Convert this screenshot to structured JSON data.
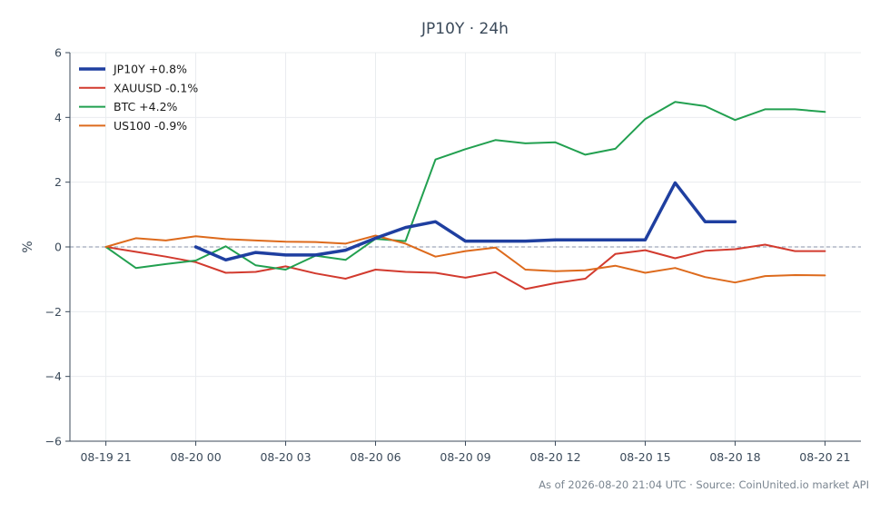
{
  "chart_data": {
    "type": "line",
    "title": "JP10Y · 24h",
    "xlabel": "",
    "ylabel": "%",
    "ylim": [
      -6,
      6
    ],
    "yticks": [
      -6,
      -4,
      -2,
      0,
      2,
      4,
      6
    ],
    "ytick_labels": [
      "−6",
      "−4",
      "−2",
      "0",
      "2",
      "4",
      "6"
    ],
    "xtick_labels": [
      "08-19 21",
      "08-20 00",
      "08-20 03",
      "08-20 06",
      "08-20 09",
      "08-20 12",
      "08-20 15",
      "08-20 18",
      "08-20 21"
    ],
    "xtick_hours": [
      0,
      3,
      6,
      9,
      12,
      15,
      18,
      21,
      24
    ],
    "xlim_hours": [
      -1.2,
      25.2
    ],
    "grid": true,
    "zero_line": true,
    "legend_position": "top-left",
    "series": [
      {
        "name": "JP10Y +0.8%",
        "color": "#1f3fa0",
        "width": 3.5,
        "x": [
          3,
          4,
          5,
          6,
          7,
          8,
          9,
          10,
          11,
          12,
          13,
          14,
          15,
          16,
          17,
          18,
          19,
          20,
          21
        ],
        "y": [
          0.0,
          -0.4,
          -0.17,
          -0.25,
          -0.25,
          -0.1,
          0.27,
          0.6,
          0.78,
          0.18,
          0.18,
          0.18,
          0.22,
          0.22,
          0.22,
          0.22,
          1.98,
          0.78,
          0.78
        ]
      },
      {
        "name": "XAUUSD -0.1%",
        "color": "#d23a2e",
        "width": 2,
        "x": [
          0,
          1,
          2,
          3,
          4,
          5,
          6,
          7,
          8,
          9,
          10,
          11,
          12,
          13,
          14,
          15,
          16,
          17,
          18,
          19,
          20,
          21,
          22,
          23,
          24
        ],
        "y": [
          0.0,
          -0.15,
          -0.3,
          -0.47,
          -0.8,
          -0.77,
          -0.6,
          -0.82,
          -0.98,
          -0.7,
          -0.77,
          -0.8,
          -0.95,
          -0.78,
          -1.3,
          -1.12,
          -0.98,
          -0.22,
          -0.1,
          -0.35,
          -0.12,
          -0.07,
          0.07,
          -0.13,
          -0.13
        ]
      },
      {
        "name": "BTC +4.2%",
        "color": "#22a050",
        "width": 2,
        "x": [
          0,
          1,
          2,
          3,
          4,
          5,
          6,
          7,
          8,
          9,
          10,
          11,
          12,
          13,
          14,
          15,
          16,
          17,
          18,
          19,
          20,
          21,
          22,
          23,
          24
        ],
        "y": [
          0.0,
          -0.65,
          -0.53,
          -0.42,
          0.02,
          -0.57,
          -0.7,
          -0.27,
          -0.4,
          0.25,
          0.18,
          2.7,
          3.02,
          3.3,
          3.2,
          3.23,
          2.85,
          3.03,
          3.95,
          4.48,
          4.35,
          3.92,
          4.25,
          4.25,
          4.17
        ]
      },
      {
        "name": "US100 -0.9%",
        "color": "#dd6a1c",
        "width": 2,
        "x": [
          0,
          1,
          2,
          3,
          4,
          5,
          6,
          7,
          8,
          9,
          10,
          11,
          12,
          13,
          14,
          15,
          16,
          17,
          18,
          19,
          20,
          21,
          22,
          23,
          24
        ],
        "y": [
          0.0,
          0.27,
          0.2,
          0.33,
          0.24,
          0.2,
          0.16,
          0.15,
          0.1,
          0.35,
          0.1,
          -0.3,
          -0.13,
          -0.02,
          -0.7,
          -0.75,
          -0.72,
          -0.58,
          -0.8,
          -0.65,
          -0.93,
          -1.1,
          -0.9,
          -0.87,
          -0.88
        ]
      }
    ],
    "footer": "As of 2026-08-20 21:04 UTC · Source: CoinUnited.io market API"
  }
}
